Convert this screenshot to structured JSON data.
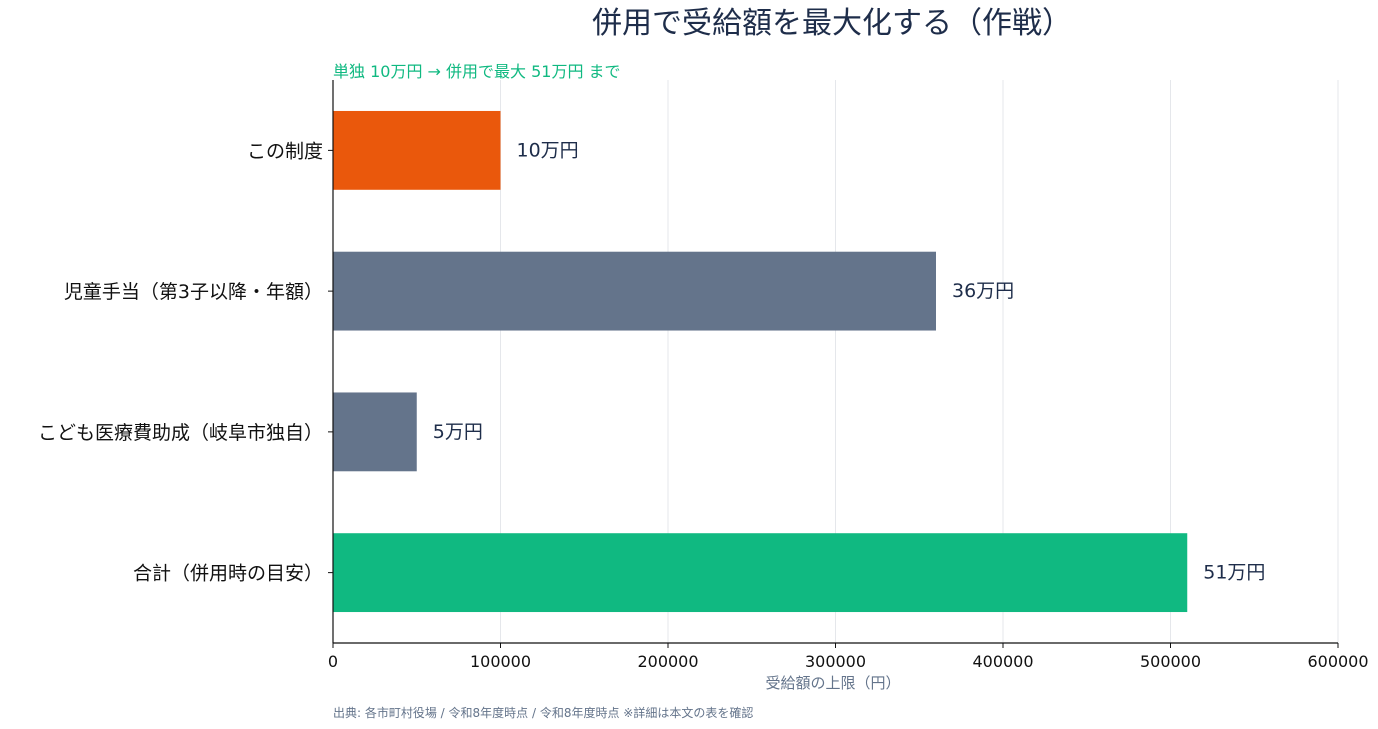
{
  "chart_data": {
    "type": "bar",
    "orientation": "horizontal",
    "title": "併用で受給額を最大化する（作戦）",
    "subtitle": "単独 10万円 → 併用で最大 51万円 まで",
    "categories": [
      "この制度",
      "児童手当（第3子以降・年額）",
      "こども医療費助成（岐阜市独自）",
      "合計（併用時の目安）"
    ],
    "values": [
      100000,
      360000,
      50000,
      510000
    ],
    "value_labels": [
      "10万円",
      "36万円",
      "5万円",
      "51万円"
    ],
    "bar_colors": [
      "#ea580c",
      "#64748b",
      "#64748b",
      "#10b981"
    ],
    "xlabel": "受給額の上限（円）",
    "ylabel": "",
    "xlim": [
      0,
      600000
    ],
    "xticks": [
      "0",
      "100000",
      "200000",
      "300000",
      "400000",
      "500000",
      "600000"
    ],
    "grid": "vertical",
    "source": "出典: 各市町村役場 / 令和8年度時点 / 令和8年度時点 ※詳細は本文の表を確認"
  }
}
